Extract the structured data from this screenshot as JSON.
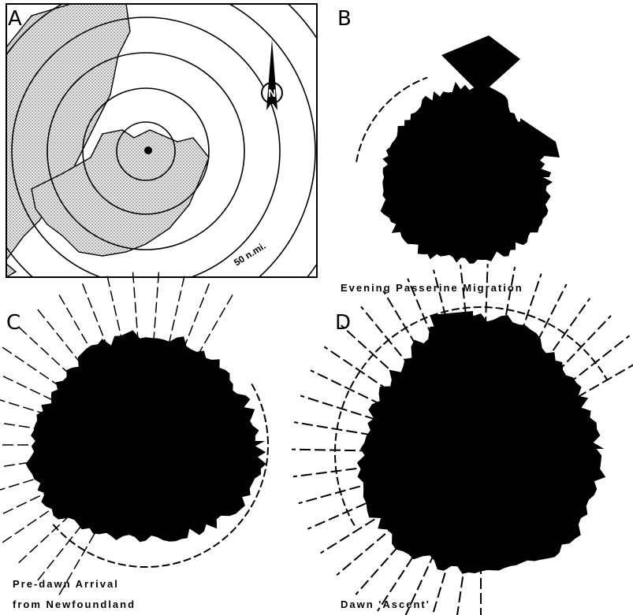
{
  "panels": [
    {
      "label": "A",
      "annotations": [
        "50 n.mi.",
        "N"
      ]
    },
    {
      "label": "B",
      "caption": [
        "Evening Passerine Migration"
      ]
    },
    {
      "label": "C",
      "caption": [
        "Pre-dawn Arrival",
        "from Newfoundland"
      ]
    },
    {
      "label": "D",
      "caption": [
        "Dawn 'Ascent'"
      ]
    }
  ]
}
